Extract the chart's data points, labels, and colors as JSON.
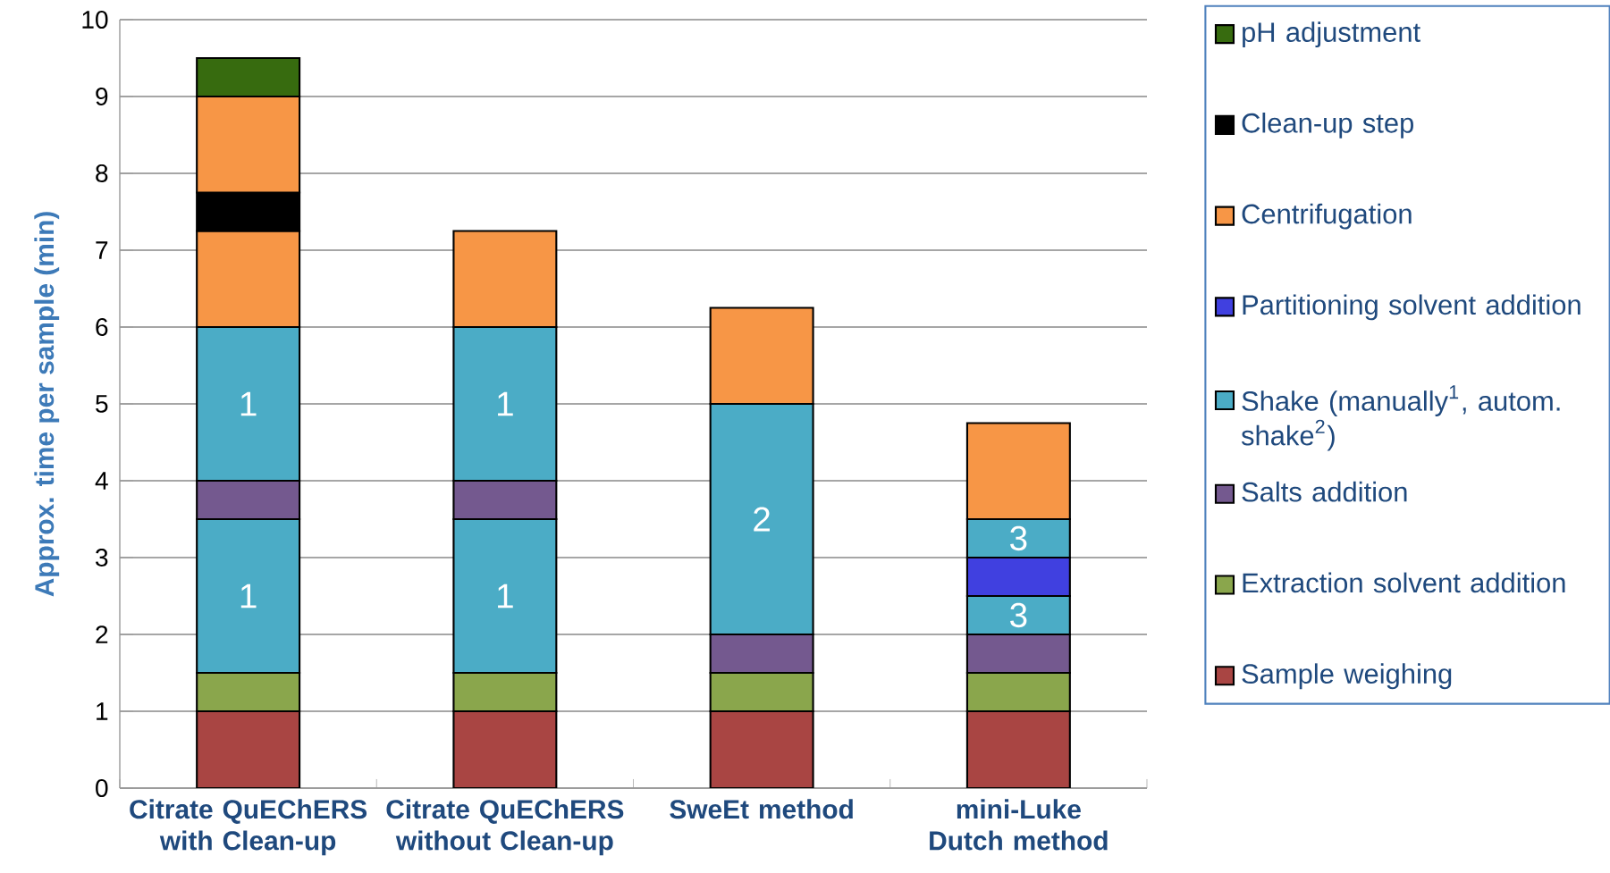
{
  "chart_data": {
    "type": "bar",
    "stacked": true,
    "ylabel": "Approx. time per sample (min)",
    "categories": [
      "Citrate QuEChERS with Clean-up",
      "Citrate QuEChERS without Clean-up",
      "SweEt method",
      "mini-Luke Dutch method"
    ],
    "ylim": [
      0,
      10
    ],
    "yticks": [
      0,
      1,
      2,
      3,
      4,
      5,
      6,
      7,
      8,
      9,
      10
    ],
    "grid": "y",
    "legend": "right",
    "annotations": [
      "1",
      "1",
      "1",
      "1",
      "2",
      "3",
      "3"
    ],
    "series": [
      {
        "name": "Sample weighing",
        "color": "#a94543",
        "values": [
          1,
          1,
          1,
          1
        ]
      },
      {
        "name": "Extraction solvent addition",
        "color": "#8aa64c",
        "values": [
          0.5,
          0.5,
          0.5,
          0.5
        ]
      },
      {
        "color": "#4bacc6",
        "values": [
          2,
          2,
          null,
          null
        ]
      },
      {
        "name": "Salts addition",
        "color": "#74598f",
        "values": [
          0.5,
          0.5,
          0.5,
          0.5
        ]
      },
      {
        "name": "Shake (manually$^{1}$, autom. shake$^{2}$)",
        "color": "#4bacc6",
        "values": [
          2,
          2,
          3,
          0.5
        ]
      },
      {
        "name": "Partitioning solvent addition",
        "color": "#4040e0",
        "values": [
          null,
          null,
          null,
          0.5
        ]
      },
      {
        "color": "#4bacc6",
        "values": [
          null,
          null,
          null,
          0.5
        ]
      },
      {
        "name": "Centrifugation",
        "color": "#f79646",
        "values": [
          1.25,
          1.25,
          1.25,
          1.25
        ]
      },
      {
        "name": "Clean-up step",
        "color": "#000000",
        "values": [
          0.5,
          null,
          null,
          null
        ]
      },
      {
        "color": "#f79646",
        "values": [
          1.25,
          null,
          null,
          null
        ]
      },
      {
        "name": "pH adjustment",
        "color": "#376b0f",
        "values": [
          0.5,
          null,
          null,
          null
        ]
      }
    ]
  }
}
